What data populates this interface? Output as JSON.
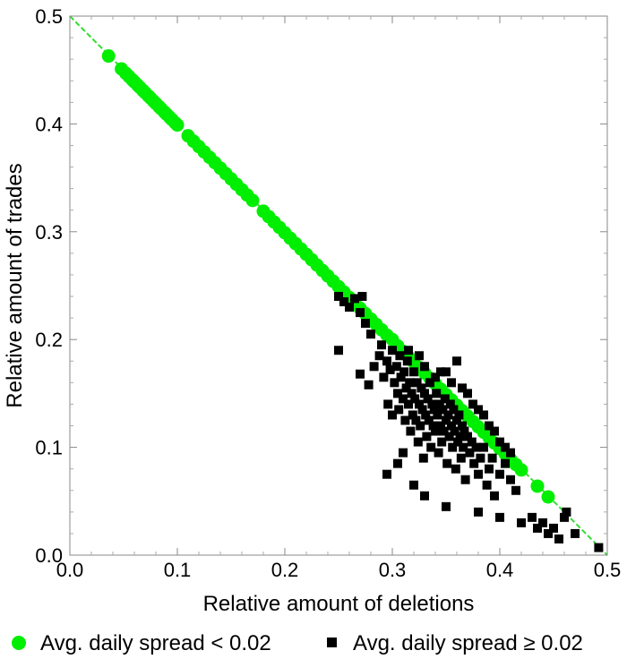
{
  "chart_data": {
    "type": "scatter",
    "title": "",
    "xlabel": "Relative amount of deletions",
    "ylabel": "Relative amount of trades",
    "xlim": [
      0.0,
      0.5
    ],
    "ylim": [
      0.0,
      0.5
    ],
    "x_ticks": [
      "0.0",
      "0.1",
      "0.2",
      "0.3",
      "0.4",
      "0.5"
    ],
    "y_ticks": [
      "0.0",
      "0.1",
      "0.2",
      "0.3",
      "0.4",
      "0.5"
    ],
    "grid": false,
    "legend_position": "bottom",
    "reference_line": {
      "style": "dashed",
      "color": "#33dd33",
      "from": [
        0.0,
        0.5
      ],
      "to": [
        0.5,
        0.0
      ]
    },
    "series": [
      {
        "name": "Avg. daily spread < 0.02",
        "marker": "circle",
        "color": "#00ee00",
        "points": [
          [
            0.036,
            0.463
          ],
          [
            0.048,
            0.451
          ],
          [
            0.052,
            0.447
          ],
          [
            0.055,
            0.444
          ],
          [
            0.058,
            0.441
          ],
          [
            0.06,
            0.439
          ],
          [
            0.063,
            0.436
          ],
          [
            0.065,
            0.434
          ],
          [
            0.068,
            0.431
          ],
          [
            0.07,
            0.429
          ],
          [
            0.073,
            0.426
          ],
          [
            0.075,
            0.424
          ],
          [
            0.078,
            0.421
          ],
          [
            0.08,
            0.419
          ],
          [
            0.083,
            0.416
          ],
          [
            0.085,
            0.414
          ],
          [
            0.088,
            0.411
          ],
          [
            0.09,
            0.409
          ],
          [
            0.093,
            0.406
          ],
          [
            0.095,
            0.404
          ],
          [
            0.098,
            0.401
          ],
          [
            0.1,
            0.399
          ],
          [
            0.11,
            0.389
          ],
          [
            0.115,
            0.384
          ],
          [
            0.12,
            0.379
          ],
          [
            0.125,
            0.374
          ],
          [
            0.13,
            0.369
          ],
          [
            0.135,
            0.364
          ],
          [
            0.14,
            0.359
          ],
          [
            0.145,
            0.354
          ],
          [
            0.15,
            0.349
          ],
          [
            0.155,
            0.344
          ],
          [
            0.16,
            0.339
          ],
          [
            0.165,
            0.334
          ],
          [
            0.17,
            0.329
          ],
          [
            0.18,
            0.319
          ],
          [
            0.185,
            0.314
          ],
          [
            0.19,
            0.309
          ],
          [
            0.195,
            0.304
          ],
          [
            0.2,
            0.299
          ],
          [
            0.205,
            0.294
          ],
          [
            0.21,
            0.289
          ],
          [
            0.215,
            0.284
          ],
          [
            0.22,
            0.279
          ],
          [
            0.225,
            0.274
          ],
          [
            0.23,
            0.269
          ],
          [
            0.235,
            0.264
          ],
          [
            0.24,
            0.259
          ],
          [
            0.245,
            0.254
          ],
          [
            0.25,
            0.249
          ],
          [
            0.255,
            0.244
          ],
          [
            0.26,
            0.239
          ],
          [
            0.265,
            0.234
          ],
          [
            0.27,
            0.229
          ],
          [
            0.275,
            0.224
          ],
          [
            0.28,
            0.219
          ],
          [
            0.285,
            0.214
          ],
          [
            0.29,
            0.209
          ],
          [
            0.295,
            0.204
          ],
          [
            0.3,
            0.2
          ],
          [
            0.305,
            0.194
          ],
          [
            0.31,
            0.189
          ],
          [
            0.315,
            0.184
          ],
          [
            0.32,
            0.179
          ],
          [
            0.325,
            0.174
          ],
          [
            0.33,
            0.169
          ],
          [
            0.335,
            0.164
          ],
          [
            0.34,
            0.159
          ],
          [
            0.345,
            0.154
          ],
          [
            0.35,
            0.149
          ],
          [
            0.355,
            0.144
          ],
          [
            0.36,
            0.139
          ],
          [
            0.365,
            0.134
          ],
          [
            0.37,
            0.129
          ],
          [
            0.375,
            0.124
          ],
          [
            0.38,
            0.119
          ],
          [
            0.385,
            0.114
          ],
          [
            0.39,
            0.109
          ],
          [
            0.395,
            0.104
          ],
          [
            0.4,
            0.099
          ],
          [
            0.405,
            0.094
          ],
          [
            0.41,
            0.089
          ],
          [
            0.415,
            0.084
          ],
          [
            0.42,
            0.079
          ],
          [
            0.435,
            0.064
          ],
          [
            0.445,
            0.054
          ]
        ]
      },
      {
        "name": "Avg. daily spread ≥ 0.02",
        "marker": "square",
        "color": "#000000",
        "points": [
          [
            0.25,
            0.24
          ],
          [
            0.255,
            0.235
          ],
          [
            0.26,
            0.23
          ],
          [
            0.265,
            0.238
          ],
          [
            0.27,
            0.225
          ],
          [
            0.272,
            0.24
          ],
          [
            0.275,
            0.215
          ],
          [
            0.28,
            0.205
          ],
          [
            0.25,
            0.19
          ],
          [
            0.27,
            0.168
          ],
          [
            0.278,
            0.158
          ],
          [
            0.283,
            0.175
          ],
          [
            0.288,
            0.185
          ],
          [
            0.29,
            0.195
          ],
          [
            0.292,
            0.165
          ],
          [
            0.295,
            0.18
          ],
          [
            0.296,
            0.14
          ],
          [
            0.298,
            0.172
          ],
          [
            0.3,
            0.13
          ],
          [
            0.3,
            0.19
          ],
          [
            0.302,
            0.16
          ],
          [
            0.304,
            0.175
          ],
          [
            0.305,
            0.15
          ],
          [
            0.306,
            0.135
          ],
          [
            0.307,
            0.185
          ],
          [
            0.308,
            0.165
          ],
          [
            0.31,
            0.145
          ],
          [
            0.311,
            0.17
          ],
          [
            0.312,
            0.125
          ],
          [
            0.313,
            0.155
          ],
          [
            0.314,
            0.18
          ],
          [
            0.315,
            0.14
          ],
          [
            0.316,
            0.16
          ],
          [
            0.317,
            0.115
          ],
          [
            0.318,
            0.15
          ],
          [
            0.319,
            0.13
          ],
          [
            0.32,
            0.17
          ],
          [
            0.321,
            0.145
          ],
          [
            0.322,
            0.125
          ],
          [
            0.323,
            0.16
          ],
          [
            0.324,
            0.105
          ],
          [
            0.325,
            0.14
          ],
          [
            0.326,
            0.12
          ],
          [
            0.327,
            0.155
          ],
          [
            0.328,
            0.135
          ],
          [
            0.329,
            0.09
          ],
          [
            0.33,
            0.15
          ],
          [
            0.331,
            0.13
          ],
          [
            0.332,
            0.11
          ],
          [
            0.333,
            0.145
          ],
          [
            0.334,
            0.125
          ],
          [
            0.335,
            0.16
          ],
          [
            0.336,
            0.1
          ],
          [
            0.337,
            0.14
          ],
          [
            0.338,
            0.12
          ],
          [
            0.339,
            0.135
          ],
          [
            0.34,
            0.115
          ],
          [
            0.341,
            0.15
          ],
          [
            0.342,
            0.13
          ],
          [
            0.343,
            0.095
          ],
          [
            0.344,
            0.14
          ],
          [
            0.345,
            0.12
          ],
          [
            0.346,
            0.105
          ],
          [
            0.347,
            0.135
          ],
          [
            0.348,
            0.115
          ],
          [
            0.349,
            0.145
          ],
          [
            0.35,
            0.125
          ],
          [
            0.351,
            0.085
          ],
          [
            0.352,
            0.13
          ],
          [
            0.353,
            0.11
          ],
          [
            0.354,
            0.14
          ],
          [
            0.355,
            0.12
          ],
          [
            0.356,
            0.1
          ],
          [
            0.357,
            0.135
          ],
          [
            0.358,
            0.115
          ],
          [
            0.359,
            0.08
          ],
          [
            0.36,
            0.125
          ],
          [
            0.361,
            0.105
          ],
          [
            0.362,
            0.13
          ],
          [
            0.363,
            0.11
          ],
          [
            0.364,
            0.09
          ],
          [
            0.365,
            0.12
          ],
          [
            0.366,
            0.1
          ],
          [
            0.367,
            0.115
          ],
          [
            0.368,
            0.07
          ],
          [
            0.37,
            0.11
          ],
          [
            0.372,
            0.095
          ],
          [
            0.374,
            0.105
          ],
          [
            0.376,
            0.085
          ],
          [
            0.378,
            0.1
          ],
          [
            0.38,
            0.075
          ],
          [
            0.382,
            0.09
          ],
          [
            0.385,
            0.1
          ],
          [
            0.388,
            0.065
          ],
          [
            0.39,
            0.08
          ],
          [
            0.393,
            0.09
          ],
          [
            0.395,
            0.055
          ],
          [
            0.4,
            0.075
          ],
          [
            0.405,
            0.085
          ],
          [
            0.41,
            0.07
          ],
          [
            0.415,
            0.06
          ],
          [
            0.33,
            0.055
          ],
          [
            0.35,
            0.045
          ],
          [
            0.38,
            0.04
          ],
          [
            0.4,
            0.035
          ],
          [
            0.305,
            0.085
          ],
          [
            0.31,
            0.095
          ],
          [
            0.295,
            0.075
          ],
          [
            0.32,
            0.065
          ],
          [
            0.42,
            0.03
          ],
          [
            0.43,
            0.035
          ],
          [
            0.435,
            0.025
          ],
          [
            0.44,
            0.03
          ],
          [
            0.445,
            0.02
          ],
          [
            0.45,
            0.025
          ],
          [
            0.455,
            0.015
          ],
          [
            0.46,
            0.035
          ],
          [
            0.462,
            0.04
          ],
          [
            0.47,
            0.02
          ],
          [
            0.492,
            0.007
          ],
          [
            0.36,
            0.18
          ],
          [
            0.35,
            0.17
          ],
          [
            0.34,
            0.165
          ],
          [
            0.33,
            0.175
          ],
          [
            0.325,
            0.185
          ],
          [
            0.315,
            0.19
          ],
          [
            0.375,
            0.14
          ],
          [
            0.385,
            0.13
          ],
          [
            0.39,
            0.12
          ],
          [
            0.395,
            0.115
          ],
          [
            0.4,
            0.105
          ],
          [
            0.405,
            0.1
          ],
          [
            0.41,
            0.095
          ],
          [
            0.37,
            0.15
          ],
          [
            0.38,
            0.135
          ],
          [
            0.365,
            0.155
          ],
          [
            0.355,
            0.16
          ],
          [
            0.345,
            0.17
          ]
        ]
      }
    ]
  }
}
